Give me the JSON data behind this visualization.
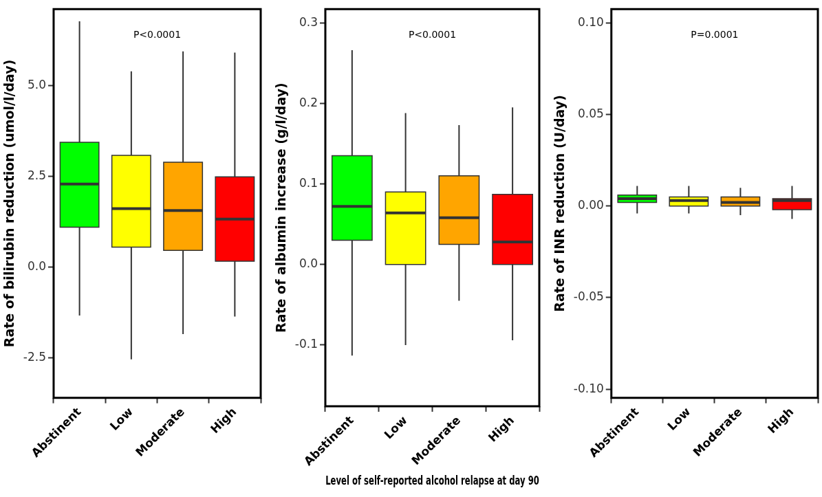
{
  "chart_data": [
    {
      "type": "box",
      "ylabel": "Rate of bilirubin reduction (umol/l/day)",
      "categories": [
        "Abstinent",
        "Low",
        "Moderate",
        "High"
      ],
      "colors": [
        "#00ff00",
        "#ffff00",
        "#ffa500",
        "#ff0000"
      ],
      "boxes": [
        {
          "low": -1.34,
          "q1": 1.1,
          "median": 2.29,
          "q3": 3.44,
          "high": 6.78
        },
        {
          "low": -2.55,
          "q1": 0.55,
          "median": 1.61,
          "q3": 3.08,
          "high": 5.4
        },
        {
          "low": -1.85,
          "q1": 0.46,
          "median": 1.56,
          "q3": 2.89,
          "high": 5.95
        },
        {
          "low": -1.37,
          "q1": 0.16,
          "median": 1.32,
          "q3": 2.49,
          "high": 5.92
        }
      ],
      "ylim": [
        -3.61,
        7.12
      ],
      "yticks": [
        {
          "value": -2.5,
          "label": "-2.5"
        },
        {
          "value": 0,
          "label": "0.0"
        },
        {
          "value": 2.5,
          "label": "2.5"
        },
        {
          "value": 5,
          "label": "5.0"
        }
      ],
      "annotations": [
        "P<0.0001"
      ]
    },
    {
      "type": "box",
      "ylabel": "Rate of albumin increase (g/l/day)",
      "xlabel": "Level of self-reported alcohol relapse at day 90",
      "categories": [
        "Abstinent",
        "Low",
        "Moderate",
        "High"
      ],
      "colors": [
        "#00ff00",
        "#ffff00",
        "#ffa500",
        "#ff0000"
      ],
      "boxes": [
        {
          "low": -0.113,
          "q1": 0.03,
          "median": 0.072,
          "q3": 0.135,
          "high": 0.266
        },
        {
          "low": -0.1,
          "q1": 0,
          "median": 0.064,
          "q3": 0.09,
          "high": 0.188
        },
        {
          "low": -0.045,
          "q1": 0.025,
          "median": 0.058,
          "q3": 0.11,
          "high": 0.173
        },
        {
          "low": -0.094,
          "q1": 0,
          "median": 0.028,
          "q3": 0.087,
          "high": 0.195
        }
      ],
      "ylim": [
        -0.176,
        0.317
      ],
      "yticks": [
        -0.1,
        {
          "value": 0,
          "label": "0.0"
        },
        0.1,
        0.2,
        0.3
      ],
      "annotations": [
        "P<0.0001"
      ]
    },
    {
      "type": "box",
      "ylabel": "Rate of INR reduction (U/day)",
      "categories": [
        "Abstinent",
        "Low",
        "Moderate",
        "High"
      ],
      "colors": [
        "#00ff00",
        "#ffff00",
        "#ffa500",
        "#ff0000"
      ],
      "boxes": [
        {
          "low": -0.004,
          "q1": 0.002,
          "median": 0.004,
          "q3": 0.006,
          "high": 0.011
        },
        {
          "low": -0.004,
          "q1": 0,
          "median": 0.003,
          "q3": 0.005,
          "high": 0.011
        },
        {
          "low": -0.005,
          "q1": 0,
          "median": 0.002,
          "q3": 0.005,
          "high": 0.01
        },
        {
          "low": -0.007,
          "q1": -0.002,
          "median": 0.003,
          "q3": 0.004,
          "high": 0.011
        }
      ],
      "ylim": [
        -0.1047,
        0.1076
      ],
      "yticks": [
        {
          "value": -0.1,
          "label": "-0.10"
        },
        {
          "value": -0.05,
          "label": "-0.05"
        },
        {
          "value": 0,
          "label": "0.00"
        },
        {
          "value": 0.05,
          "label": "0.05"
        },
        {
          "value": 0.1,
          "label": "0.10"
        }
      ],
      "annotations": [
        "P=0.0001"
      ]
    }
  ]
}
